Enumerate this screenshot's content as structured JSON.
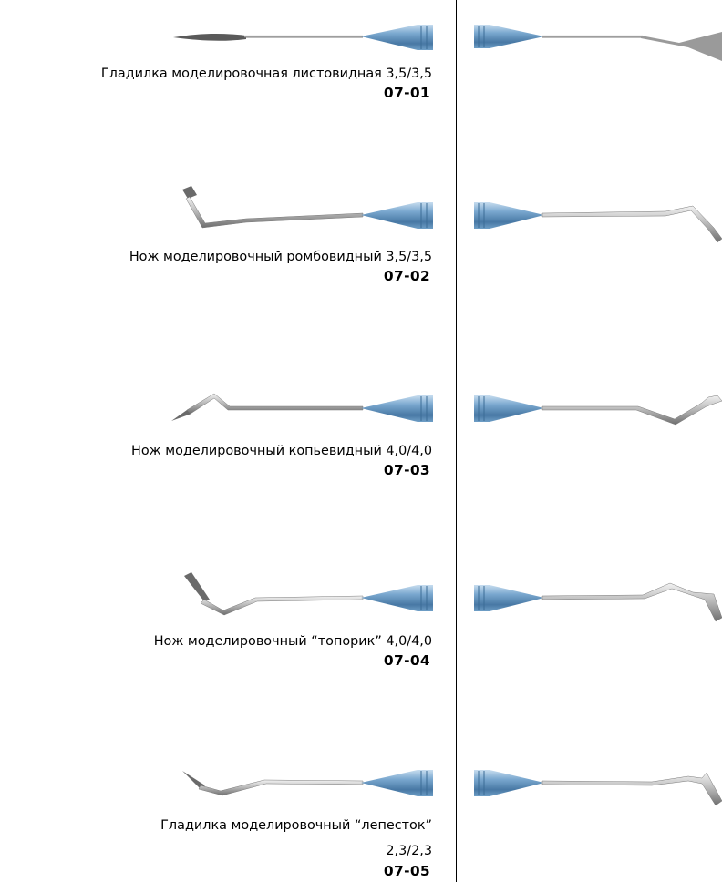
{
  "colors": {
    "handle": "#4f86b0",
    "handle_light": "#a9cbe6",
    "steel": "#8a8a8a",
    "steel_light": "#d8d8d8",
    "divider": "#000000"
  },
  "products": [
    {
      "name": "Гладилка моделировочная листовидная 3,5/3,5",
      "code": "07-01",
      "left_tip": "leaf-blade-icon",
      "right_tip": "bent-spatula-icon"
    },
    {
      "name": "Нож моделировочный ромбовидный 3,5/3,5",
      "code": "07-02",
      "left_tip": "rhomboid-knife-icon",
      "right_tip": "rhomboid-knife-icon"
    },
    {
      "name": "Нож моделировочный копьевидный 4,0/4,0",
      "code": "07-03",
      "left_tip": "spear-knife-icon",
      "right_tip": "spear-knife-icon"
    },
    {
      "name": "Нож моделировочный “топорик” 4,0/4,0",
      "code": "07-04",
      "left_tip": "hatchet-knife-icon",
      "right_tip": "hatchet-knife-icon"
    },
    {
      "name_line1": "Гладилка моделировочный “лепесток”",
      "name_line2": "2,3/2,3",
      "code": "07-05",
      "left_tip": "petal-spatula-icon",
      "right_tip": "petal-spatula-icon"
    }
  ]
}
